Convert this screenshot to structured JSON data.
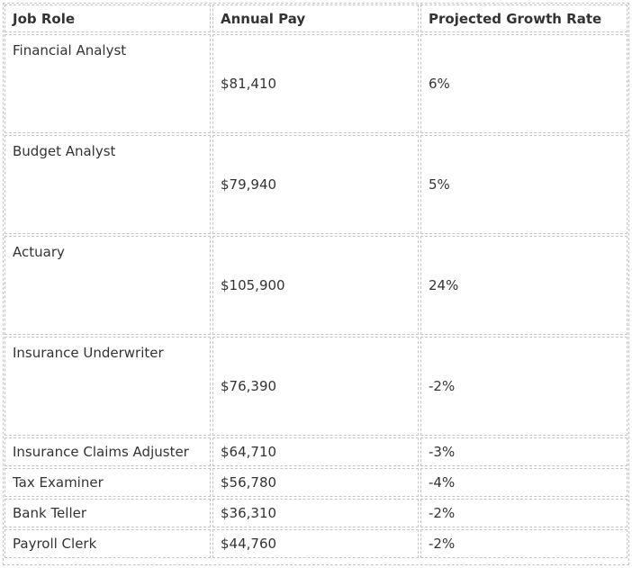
{
  "table": {
    "headers": [
      "Job Role",
      "Annual Pay",
      "Projected Growth Rate"
    ],
    "rows": [
      {
        "role": "Financial Analyst",
        "pay": "$81,410",
        "growth": "6%",
        "size": "tall"
      },
      {
        "role": "Budget Analyst",
        "pay": "$79,940",
        "growth": "5%",
        "size": "tall"
      },
      {
        "role": "Actuary",
        "pay": "$105,900",
        "growth": "24%",
        "size": "tall"
      },
      {
        "role": "Insurance Underwriter",
        "pay": "$76,390",
        "growth": "-2%",
        "size": "tall"
      },
      {
        "role": "Insurance Claims Adjuster",
        "pay": "$64,710",
        "growth": "-3%",
        "size": "short"
      },
      {
        "role": "Tax Examiner",
        "pay": "$56,780",
        "growth": "-4%",
        "size": "short"
      },
      {
        "role": "Bank Teller",
        "pay": "$36,310",
        "growth": "-2%",
        "size": "short"
      },
      {
        "role": "Payroll Clerk",
        "pay": "$44,760",
        "growth": "-2%",
        "size": "short"
      }
    ]
  }
}
